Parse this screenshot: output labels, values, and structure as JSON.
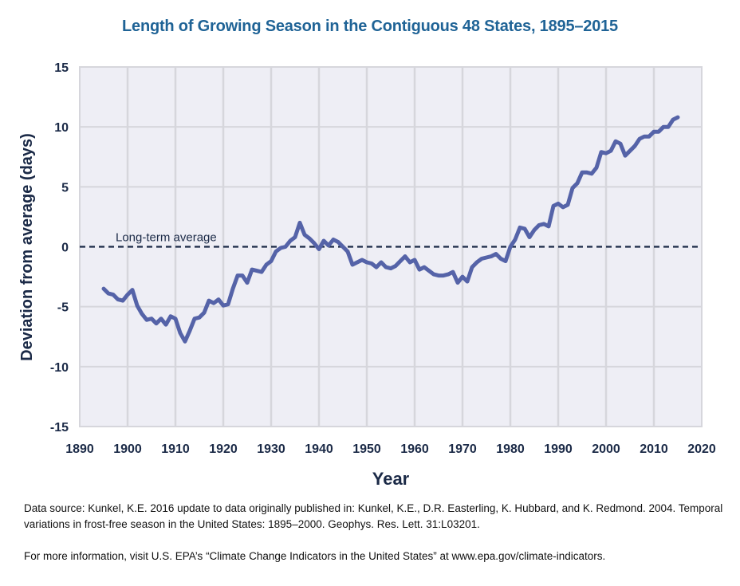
{
  "chart_data": {
    "type": "line",
    "title": "Length of Growing Season in the Contiguous 48 States, 1895–2015",
    "xlabel": "Year",
    "ylabel": "Deviation from average (days)",
    "xlim": [
      1890,
      2020
    ],
    "ylim": [
      -15,
      15
    ],
    "xticks": [
      "1890",
      "1900",
      "1910",
      "1920",
      "1930",
      "1940",
      "1950",
      "1960",
      "1970",
      "1980",
      "1990",
      "2000",
      "2010",
      "2020"
    ],
    "yticks": [
      "15",
      "10",
      "5",
      "0",
      "-5",
      "-10",
      "-15"
    ],
    "grid": true,
    "reference_line": {
      "value": 0,
      "label": "Long-term average",
      "style": "dashed"
    },
    "line_color": "#5563a8",
    "series": [
      {
        "name": "Growing season length deviation",
        "x": [
          1895,
          1896,
          1897,
          1898,
          1899,
          1900,
          1901,
          1902,
          1903,
          1904,
          1905,
          1906,
          1907,
          1908,
          1909,
          1910,
          1911,
          1912,
          1913,
          1914,
          1915,
          1916,
          1917,
          1918,
          1919,
          1920,
          1921,
          1922,
          1923,
          1924,
          1925,
          1926,
          1927,
          1928,
          1929,
          1930,
          1931,
          1932,
          1933,
          1934,
          1935,
          1936,
          1937,
          1938,
          1939,
          1940,
          1941,
          1942,
          1943,
          1944,
          1945,
          1946,
          1947,
          1948,
          1949,
          1950,
          1951,
          1952,
          1953,
          1954,
          1955,
          1956,
          1957,
          1958,
          1959,
          1960,
          1961,
          1962,
          1963,
          1964,
          1965,
          1966,
          1967,
          1968,
          1969,
          1970,
          1971,
          1972,
          1973,
          1974,
          1975,
          1976,
          1977,
          1978,
          1979,
          1980,
          1981,
          1982,
          1983,
          1984,
          1985,
          1986,
          1987,
          1988,
          1989,
          1990,
          1991,
          1992,
          1993,
          1994,
          1995,
          1996,
          1997,
          1998,
          1999,
          2000,
          2001,
          2002,
          2003,
          2004,
          2005,
          2006,
          2007,
          2008,
          2009,
          2010,
          2011,
          2012,
          2013,
          2014,
          2015
        ],
        "values": [
          -3.5,
          -3.9,
          -4.0,
          -4.4,
          -4.5,
          -4.0,
          -3.6,
          -4.9,
          -5.6,
          -6.1,
          -6.0,
          -6.4,
          -6.0,
          -6.5,
          -5.8,
          -6.0,
          -7.2,
          -7.9,
          -7.0,
          -6.0,
          -5.9,
          -5.5,
          -4.5,
          -4.7,
          -4.4,
          -4.9,
          -4.8,
          -3.5,
          -2.4,
          -2.4,
          -3.0,
          -1.9,
          -2.0,
          -2.1,
          -1.5,
          -1.2,
          -0.4,
          -0.1,
          0.0,
          0.5,
          0.8,
          2.0,
          1.0,
          0.7,
          0.3,
          -0.2,
          0.5,
          0.1,
          0.6,
          0.4,
          0.0,
          -0.4,
          -1.5,
          -1.3,
          -1.1,
          -1.3,
          -1.4,
          -1.7,
          -1.3,
          -1.7,
          -1.8,
          -1.6,
          -1.2,
          -0.8,
          -1.3,
          -1.1,
          -1.9,
          -1.7,
          -2.0,
          -2.3,
          -2.4,
          -2.4,
          -2.3,
          -2.1,
          -3.0,
          -2.5,
          -2.9,
          -1.7,
          -1.3,
          -1.0,
          -0.9,
          -0.8,
          -0.6,
          -1.0,
          -1.2,
          0.0,
          0.6,
          1.6,
          1.5,
          0.8,
          1.4,
          1.8,
          1.9,
          1.7,
          3.4,
          3.6,
          3.3,
          3.5,
          4.9,
          5.3,
          6.2,
          6.2,
          6.1,
          6.6,
          7.9,
          7.8,
          8.0,
          8.8,
          8.6,
          7.6,
          8.0,
          8.4,
          9.0,
          9.2,
          9.2,
          9.6,
          9.6,
          10.0,
          10.0,
          10.6,
          10.8
        ]
      }
    ]
  },
  "footer": {
    "source_text": "Data source: Kunkel, K.E. 2016 update to data originally published in: Kunkel, K.E., D.R. Easterling, K. Hubbard, and K. Redmond. 2004. Temporal variations in frost-free season in the United States: 1895–2000. Geophys. Res. Lett. 31:L03201.",
    "more_info_text": "For more information, visit U.S. EPA’s “Climate Change Indicators in the United States” at www.epa.gov/climate-indicators."
  }
}
